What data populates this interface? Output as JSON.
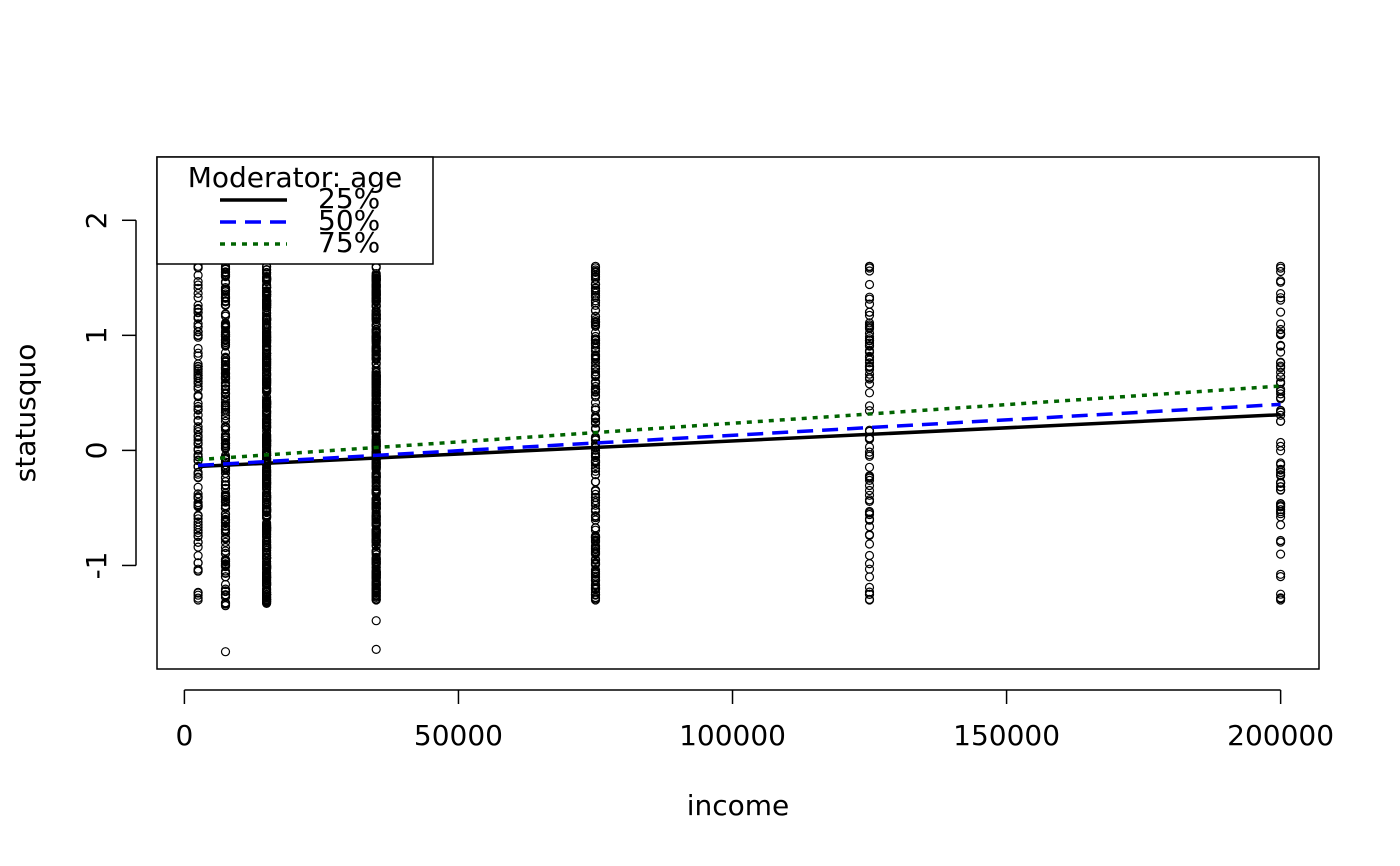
{
  "chart_data": {
    "type": "scatter",
    "title": "",
    "xlabel": "income",
    "ylabel": "statusquo",
    "xlim": [
      -5000,
      207000
    ],
    "ylim": [
      -1.9,
      2.55
    ],
    "x_ticks": [
      0,
      50000,
      100000,
      150000,
      200000
    ],
    "x_tick_labels": [
      "0",
      "50000",
      "100000",
      "150000",
      "200000"
    ],
    "y_ticks": [
      -1,
      0,
      1,
      2
    ],
    "y_tick_labels": [
      "-1",
      "0",
      "1",
      "2"
    ],
    "grid": false,
    "legend": {
      "title": "Moderator: age",
      "position": "top-left",
      "entries": [
        {
          "label": "25%",
          "color": "#000000",
          "dash": "solid"
        },
        {
          "label": "50%",
          "color": "#0000ff",
          "dash": "dashed"
        },
        {
          "label": "75%",
          "color": "#006400",
          "dash": "dotted"
        }
      ]
    },
    "point_groups": [
      {
        "x": 2500,
        "n": 110,
        "y_min": -1.3,
        "y_max": 1.6
      },
      {
        "x": 7500,
        "n": 230,
        "y_min": -1.35,
        "y_max": 1.6,
        "extra_y": [
          -1.75
        ]
      },
      {
        "x": 15000,
        "n": 420,
        "y_min": -1.33,
        "y_max": 1.6
      },
      {
        "x": 35000,
        "n": 420,
        "y_min": -1.3,
        "y_max": 1.6,
        "extra_y": [
          -1.48,
          -1.73
        ]
      },
      {
        "x": 75000,
        "n": 180,
        "y_min": -1.3,
        "y_max": 1.6
      },
      {
        "x": 125000,
        "n": 80,
        "y_min": -1.3,
        "y_max": 1.6
      },
      {
        "x": 200000,
        "n": 70,
        "y_min": -1.3,
        "y_max": 1.6
      }
    ],
    "series": [
      {
        "name": "25%",
        "x": [
          2500,
          200000
        ],
        "y": [
          -0.14,
          0.31
        ]
      },
      {
        "name": "50%",
        "x": [
          2500,
          200000
        ],
        "y": [
          -0.13,
          0.4
        ]
      },
      {
        "name": "75%",
        "x": [
          2500,
          200000
        ],
        "y": [
          -0.08,
          0.56
        ]
      }
    ]
  }
}
